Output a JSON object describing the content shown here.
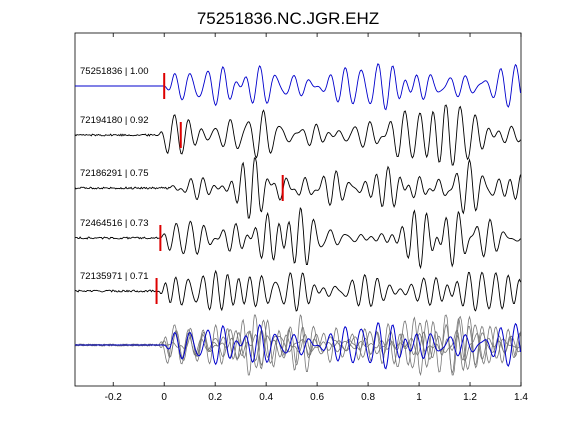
{
  "chart_data": {
    "type": "line",
    "title": "75251836.NC.JGR.EHZ",
    "xlabel": "",
    "ylabel": "",
    "xlim": [
      -0.35,
      1.4
    ],
    "x_ticks": [
      -0.2,
      0,
      0.2,
      0.4,
      0.6,
      0.8,
      1,
      1.2,
      1.4
    ],
    "x_tick_labels": [
      "-0.2",
      "0",
      "0.2",
      "0.4",
      "0.6",
      "0.8",
      "1",
      "1.2",
      "1.4"
    ],
    "grid": false,
    "legend": "none",
    "colors": {
      "reference": "#0000cc",
      "trace": "#000000",
      "stack_other": "#777777",
      "pick": "#dd0000"
    },
    "traces": [
      {
        "event_id": "75251836",
        "correlation": "1.00",
        "label": "75251836 | 1.00",
        "pick_time": 0.0,
        "color": "reference"
      },
      {
        "event_id": "72194180",
        "correlation": "0.92",
        "label": "72194180 | 0.92",
        "pick_time": 0.065,
        "color": "trace"
      },
      {
        "event_id": "72186291",
        "correlation": "0.75",
        "label": "72186291 | 0.75",
        "pick_time": 0.465,
        "color": "trace"
      },
      {
        "event_id": "72464516",
        "correlation": "0.73",
        "label": "72464516 | 0.73",
        "pick_time": -0.015,
        "color": "trace"
      },
      {
        "event_id": "72135971",
        "correlation": "0.71",
        "label": "72135971 | 0.71",
        "pick_time": -0.03,
        "color": "trace"
      }
    ]
  }
}
